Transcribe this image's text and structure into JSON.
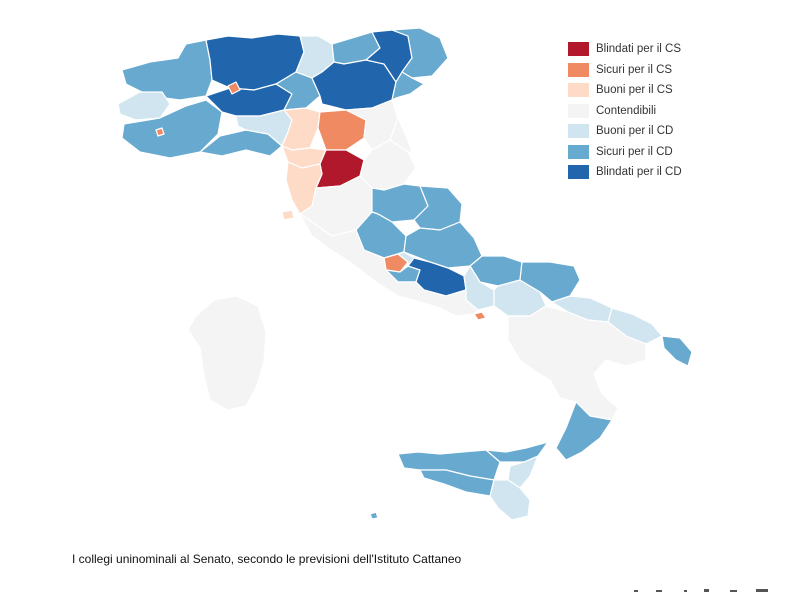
{
  "caption": "I collegi uninominali al Senato, secondo le previsioni dell'Istituto Cattaneo",
  "legend": [
    {
      "label": "Blindati per il CS",
      "color": "#b2182b"
    },
    {
      "label": "Sicuri per il CS",
      "color": "#ef8a62"
    },
    {
      "label": "Buoni per il CS",
      "color": "#fddbc7"
    },
    {
      "label": "Contendibili",
      "color": "#f4f4f4"
    },
    {
      "label": "Buoni per il CD",
      "color": "#d1e5f0"
    },
    {
      "label": "Sicuri per il CD",
      "color": "#67a9cf"
    },
    {
      "label": "Blindati per il CD",
      "color": "#2166ac"
    }
  ],
  "map": {
    "subject": "Italia – collegi uninominali Senato",
    "colors": {
      "cs_blindati": "#b2182b",
      "cs_sicuri": "#ef8a62",
      "cs_buoni": "#fddbc7",
      "contendibili": "#f4f4f4",
      "cd_buoni": "#d1e5f0",
      "cd_sicuri": "#67a9cf",
      "cd_blindati": "#2166ac"
    }
  }
}
